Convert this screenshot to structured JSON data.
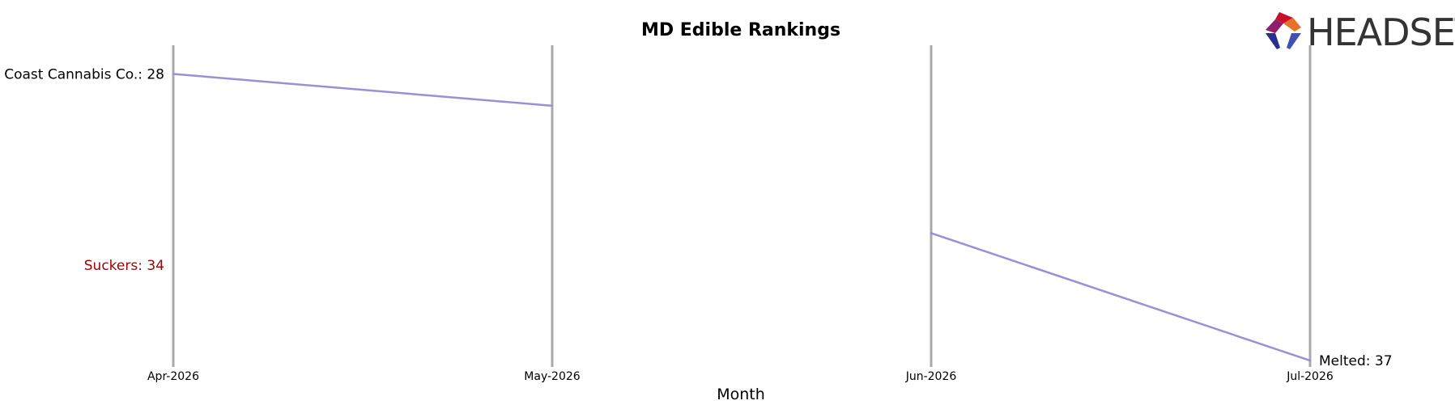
{
  "chart_data": {
    "type": "line",
    "title": "MD Edible Rankings",
    "xlabel": "Month",
    "ylabel": "",
    "categories": [
      "Apr-2026",
      "May-2026",
      "Jun-2026",
      "Jul-2026"
    ],
    "y_inverted": true,
    "ylim": [
      27.1,
      37.1
    ],
    "grid": false,
    "series": [
      {
        "values": [
          28,
          29,
          null,
          null
        ]
      },
      {
        "values": [
          null,
          null,
          33,
          37
        ]
      }
    ],
    "annotations": [
      {
        "text": "Coast Cannabis Co.: 28",
        "category": "Apr-2026",
        "value": 28,
        "side": "left",
        "color": "#000000"
      },
      {
        "text": "Suckers: 34",
        "category": "Apr-2026",
        "value": 34,
        "side": "left",
        "color": "#a50000"
      },
      {
        "text": "Melted: 37",
        "category": "Jul-2026",
        "value": 37,
        "side": "right",
        "color": "#000000"
      }
    ],
    "line_color": "#9b8fd8",
    "axis_line_color": "#aaaaaa"
  },
  "logo": {
    "text": "HEADSET",
    "colors": [
      "#c8102e",
      "#e8712a",
      "#8e1e6e",
      "#2a2f8f",
      "#3f51b5"
    ]
  }
}
